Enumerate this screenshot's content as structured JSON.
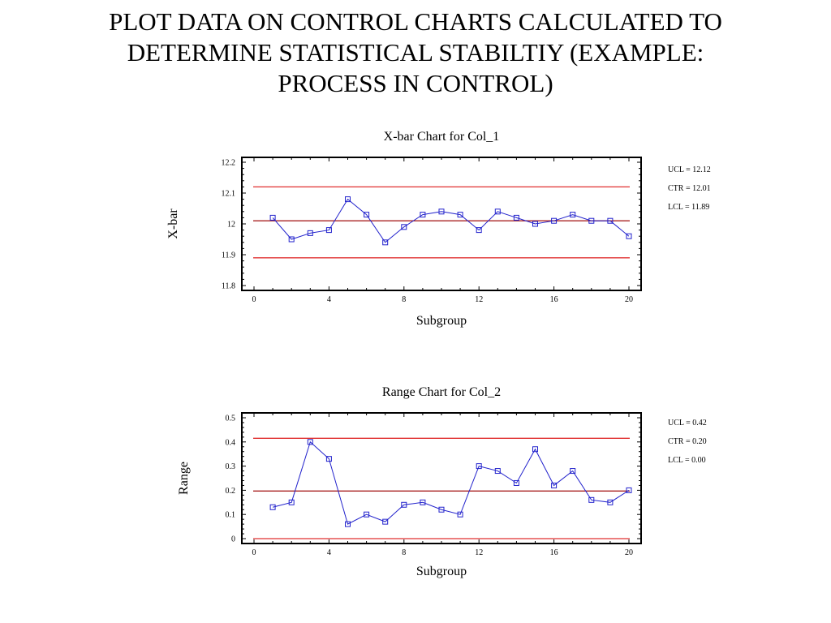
{
  "slide": {
    "title_lines": [
      "PLOT DATA ON CONTROL CHARTS CALCULATED TO",
      "DETERMINE STATISTICAL STABILTIY (EXAMPLE:",
      "PROCESS IN CONTROL)"
    ]
  },
  "colors": {
    "series": "#2222cc",
    "limits": "#e03030",
    "center": "#aa2222",
    "axis": "#000000"
  },
  "chart_data": [
    {
      "type": "line",
      "title": "X-bar Chart for Col_1",
      "xlabel": "Subgroup",
      "ylabel": "X-bar",
      "xlim": [
        0,
        20
      ],
      "ylim": [
        11.8,
        12.2
      ],
      "xticks": [
        0,
        4,
        8,
        12,
        16,
        20
      ],
      "yticks": [
        11.8,
        11.9,
        12.0,
        12.1,
        12.2
      ],
      "ytick_labels": [
        "11.8",
        "11.9",
        "12",
        "12.1",
        "12.2"
      ],
      "x": [
        1,
        2,
        3,
        4,
        5,
        6,
        7,
        8,
        9,
        10,
        11,
        12,
        13,
        14,
        15,
        16,
        17,
        18,
        19,
        20
      ],
      "values": [
        12.02,
        11.95,
        11.97,
        11.98,
        12.08,
        12.03,
        11.94,
        11.99,
        12.03,
        12.04,
        12.03,
        11.98,
        12.04,
        12.02,
        12.0,
        12.01,
        12.03,
        12.01,
        12.01,
        11.96
      ],
      "limits": {
        "ucl": 12.12,
        "ctr": 12.01,
        "lcl": 11.89
      },
      "limit_labels": [
        "UCL = 12.12",
        "CTR = 12.01",
        "LCL = 11.89"
      ]
    },
    {
      "type": "line",
      "title": "Range Chart for Col_2",
      "xlabel": "Subgroup",
      "ylabel": "Range",
      "xlim": [
        0,
        20
      ],
      "ylim": [
        0,
        0.5
      ],
      "xticks": [
        0,
        4,
        8,
        12,
        16,
        20
      ],
      "yticks": [
        0,
        0.1,
        0.2,
        0.3,
        0.4,
        0.5
      ],
      "ytick_labels": [
        "0",
        "0.1",
        "0.2",
        "0.3",
        "0.4",
        "0.5"
      ],
      "x": [
        1,
        2,
        3,
        4,
        5,
        6,
        7,
        8,
        9,
        10,
        11,
        12,
        13,
        14,
        15,
        16,
        17,
        18,
        19,
        20
      ],
      "values": [
        0.13,
        0.15,
        0.4,
        0.33,
        0.06,
        0.1,
        0.07,
        0.14,
        0.15,
        0.12,
        0.1,
        0.3,
        0.28,
        0.23,
        0.37,
        0.22,
        0.28,
        0.16,
        0.15,
        0.2
      ],
      "limits": {
        "ucl": 0.415,
        "ctr": 0.197,
        "lcl": 0.0
      },
      "limit_labels": [
        "UCL = 0.42",
        "CTR = 0.20",
        "LCL = 0.00"
      ]
    }
  ]
}
